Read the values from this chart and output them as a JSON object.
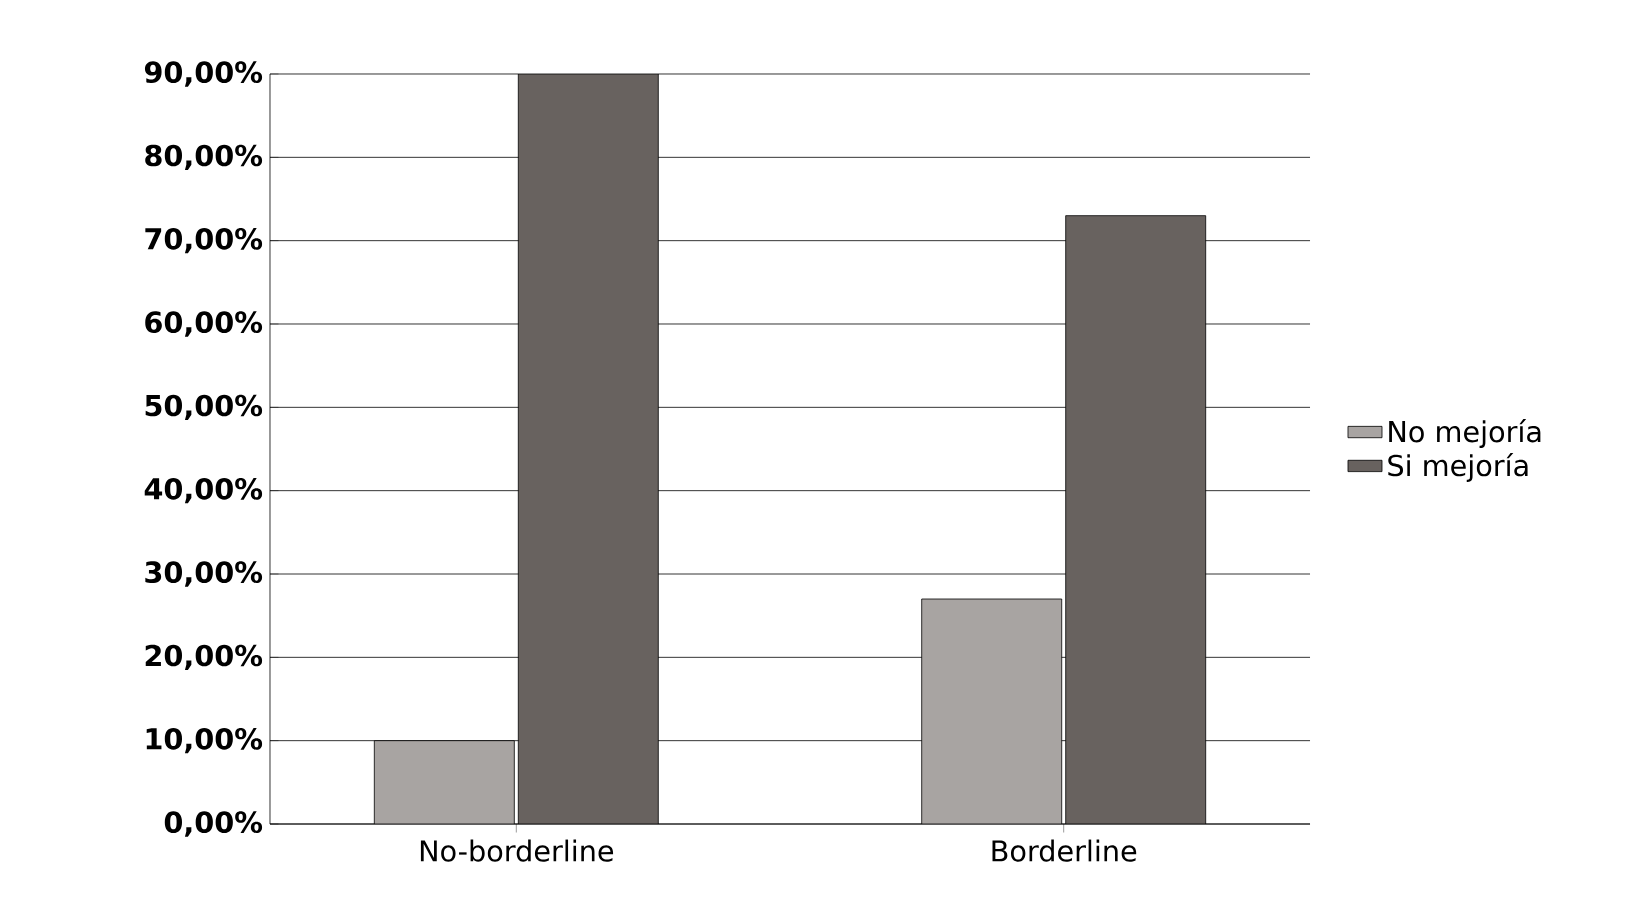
{
  "chart_data": {
    "type": "bar",
    "categories": [
      "No-borderline",
      "Borderline"
    ],
    "series": [
      {
        "name": "No mejoría",
        "color": "#a8a4a2",
        "values": [
          10,
          27
        ]
      },
      {
        "name": "Si mejoría",
        "color": "#68625f",
        "values": [
          90,
          73
        ]
      }
    ],
    "ylim": [
      0,
      90
    ],
    "yticks": [
      {
        "value": 0,
        "label": "0,00%"
      },
      {
        "value": 10,
        "label": "10,00%"
      },
      {
        "value": 20,
        "label": "20,00%"
      },
      {
        "value": 30,
        "label": "30,00%"
      },
      {
        "value": 40,
        "label": "40,00%"
      },
      {
        "value": 50,
        "label": "50,00%"
      },
      {
        "value": 60,
        "label": "60,00%"
      },
      {
        "value": 70,
        "label": "70,00%"
      },
      {
        "value": 80,
        "label": "80,00%"
      },
      {
        "value": 90,
        "label": "90,00%"
      }
    ],
    "grid": "y",
    "legend": "right"
  }
}
